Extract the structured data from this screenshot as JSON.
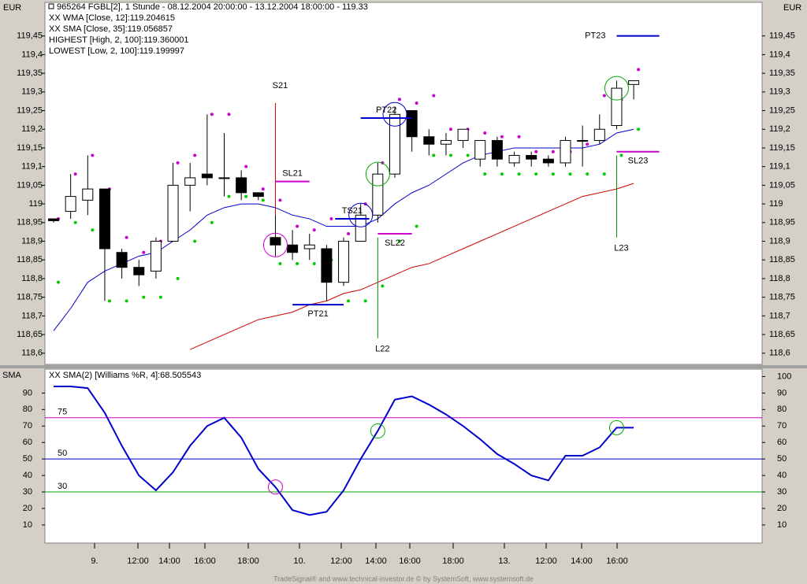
{
  "chart_data": [
    {
      "type": "candlestick",
      "title": "965264  FGBL[2], 1 Stunde - 08.12.2004 20:00:00 - 13.12.2004 18:00:00 - 119.33",
      "axis_unit": "EUR",
      "open": [
        118.96,
        118.98,
        119.01,
        119.04,
        118.87,
        118.83,
        118.82,
        118.9,
        119.05,
        119.08,
        119.07,
        119.07,
        119.03,
        118.91,
        118.89,
        118.88,
        118.88,
        118.79,
        118.9,
        118.97,
        119.08,
        119.25,
        119.18,
        119.16,
        119.17,
        119.12,
        119.17,
        119.11,
        119.13,
        119.12,
        119.11,
        119.17,
        119.17,
        119.21,
        119.32
      ],
      "high": [
        118.96,
        119.08,
        119.13,
        119.04,
        118.88,
        118.85,
        118.91,
        119.11,
        119.11,
        119.24,
        119.19,
        119.09,
        119.03,
        118.97,
        118.93,
        118.92,
        118.89,
        118.91,
        119.0,
        119.11,
        119.26,
        119.25,
        119.2,
        119.19,
        119.2,
        119.17,
        119.18,
        119.14,
        119.14,
        119.13,
        119.18,
        119.21,
        119.24,
        119.33,
        119.33
      ],
      "low": [
        118.95,
        118.96,
        118.97,
        118.74,
        118.8,
        118.78,
        118.8,
        118.9,
        118.98,
        119.05,
        119.02,
        119.01,
        119.01,
        118.86,
        118.85,
        118.85,
        118.74,
        118.78,
        118.9,
        118.95,
        119.07,
        119.14,
        119.13,
        119.13,
        119.15,
        119.1,
        119.1,
        119.1,
        119.1,
        119.1,
        119.1,
        119.1,
        119.16,
        119.2,
        119.28
      ],
      "close": [
        118.955,
        119.02,
        119.04,
        118.88,
        118.83,
        118.81,
        118.9,
        119.05,
        119.07,
        119.07,
        119.07,
        119.03,
        119.02,
        118.89,
        118.87,
        118.89,
        118.79,
        118.9,
        118.97,
        119.08,
        119.24,
        119.18,
        119.16,
        119.17,
        119.2,
        119.17,
        119.12,
        119.13,
        119.12,
        119.11,
        119.17,
        119.17,
        119.2,
        119.31,
        119.33
      ],
      "series": [
        {
          "name": "XX WMA [Close, 12]:119.204615",
          "color": "#0000cc",
          "style": "line",
          "values": [
            118.66,
            118.72,
            118.79,
            118.82,
            118.84,
            118.86,
            118.87,
            118.9,
            118.93,
            118.97,
            118.99,
            119.0,
            119.0,
            118.99,
            118.97,
            118.96,
            118.94,
            118.94,
            118.94,
            118.96,
            119.0,
            119.03,
            119.05,
            119.08,
            119.11,
            119.13,
            119.14,
            119.15,
            119.15,
            119.15,
            119.15,
            119.15,
            119.16,
            119.19,
            119.2
          ]
        },
        {
          "name": "XX SMA [Close, 35]:119.056857",
          "color": "#cc0000",
          "style": "line",
          "values": [
            null,
            null,
            null,
            null,
            null,
            null,
            null,
            null,
            118.61,
            118.63,
            118.65,
            118.67,
            118.69,
            118.7,
            118.71,
            118.73,
            118.74,
            118.76,
            118.77,
            118.79,
            118.81,
            118.83,
            118.84,
            118.86,
            118.88,
            118.9,
            118.92,
            118.94,
            118.96,
            118.98,
            119.0,
            119.02,
            119.03,
            119.04,
            119.055
          ]
        },
        {
          "name": "HIGHEST [High, 2, 100]:119.360001",
          "color": "#cc00cc",
          "style": "dots",
          "values": [
            118.96,
            119.08,
            119.13,
            119.04,
            118.91,
            118.87,
            118.9,
            119.11,
            119.13,
            119.24,
            119.24,
            119.1,
            119.04,
            119.01,
            118.94,
            118.93,
            118.96,
            118.92,
            119.0,
            119.11,
            119.28,
            119.27,
            119.29,
            119.2,
            119.2,
            119.19,
            119.18,
            119.18,
            119.14,
            119.14,
            119.14,
            119.16,
            119.29,
            119.28,
            119.36
          ]
        },
        {
          "name": "LOWEST [Low, 2, 100]:119.199997",
          "color": "#00cc00",
          "style": "dots",
          "values": [
            118.79,
            118.95,
            118.93,
            118.74,
            118.74,
            118.75,
            118.75,
            118.8,
            118.9,
            118.95,
            119.02,
            119.02,
            119.01,
            118.84,
            118.84,
            118.84,
            118.85,
            118.74,
            118.74,
            118.78,
            118.9,
            118.94,
            119.13,
            119.13,
            119.13,
            119.08,
            119.08,
            119.08,
            119.08,
            119.08,
            119.08,
            119.08,
            119.08,
            119.13,
            119.2
          ]
        }
      ],
      "annotations": [
        {
          "label": "S21",
          "color": "#cc0000",
          "values": [
            119.27,
            118.97
          ]
        },
        {
          "label": "SL21",
          "color": "#cc00cc",
          "value": 119.06
        },
        {
          "label": "TS21",
          "color": "#0000cc",
          "value": 118.96
        },
        {
          "label": "PT21",
          "color": "#0000cc",
          "value": 118.73
        },
        {
          "label": "PT22",
          "color": "#0000cc",
          "value": 119.23
        },
        {
          "label": "SL22",
          "color": "#cc00cc",
          "value": 118.92
        },
        {
          "label": "L22",
          "color": "#008800",
          "values": [
            118.91,
            118.64
          ]
        },
        {
          "label": "PT23",
          "color": "#0000cc",
          "value": 119.45
        },
        {
          "label": "SL23",
          "color": "#cc00cc",
          "value": 119.14
        },
        {
          "label": "L23",
          "color": "#008800",
          "values": [
            119.13,
            118.91
          ]
        }
      ],
      "ylim": [
        118.57,
        119.54
      ],
      "yticks": [
        {
          "value": 118.6,
          "label": "118,6"
        },
        {
          "value": 118.65,
          "label": "118,65"
        },
        {
          "value": 118.7,
          "label": "118,7"
        },
        {
          "value": 118.75,
          "label": "118,75"
        },
        {
          "value": 118.8,
          "label": "118,8"
        },
        {
          "value": 118.85,
          "label": "118,85"
        },
        {
          "value": 118.9,
          "label": "118,9"
        },
        {
          "value": 118.95,
          "label": "118,95"
        },
        {
          "value": 119,
          "label": "119"
        },
        {
          "value": 119.05,
          "label": "119,05"
        },
        {
          "value": 119.1,
          "label": "119,1"
        },
        {
          "value": 119.15,
          "label": "119,15"
        },
        {
          "value": 119.2,
          "label": "119,2"
        },
        {
          "value": 119.25,
          "label": "119,25"
        },
        {
          "value": 119.3,
          "label": "119,3"
        },
        {
          "value": 119.35,
          "label": "119,35"
        },
        {
          "value": 119.4,
          "label": "119,4"
        },
        {
          "value": 119.45,
          "label": "119,45"
        }
      ]
    },
    {
      "type": "line",
      "title": "SMA",
      "series": [
        {
          "name": "XX SMA(2) [Williams %R, 4]:68.505543",
          "color": "#0000cc",
          "values": [
            94,
            94,
            93,
            78,
            58,
            40,
            31,
            42,
            58,
            70,
            75,
            63,
            44,
            33,
            19,
            16,
            18,
            31,
            50,
            67,
            86,
            88,
            83,
            77,
            70,
            62,
            53,
            47,
            40,
            37,
            52,
            52,
            57,
            69,
            69
          ]
        }
      ],
      "levels": [
        {
          "value": 75,
          "color": "#cc00cc"
        },
        {
          "value": 50,
          "color": "#0000cc"
        },
        {
          "value": 30,
          "color": "#00aa00"
        }
      ],
      "ylim": [
        -1,
        104.5
      ],
      "yticks": [
        10,
        20,
        30,
        40,
        50,
        60,
        70,
        80,
        90
      ],
      "y2lim": [
        -1,
        104.5
      ],
      "y2ticks": [
        10,
        20,
        30,
        40,
        50,
        60,
        70,
        80,
        90,
        100
      ]
    }
  ],
  "time_axis": [
    "9.",
    "12:00",
    "14:00",
    "16:00",
    "18:00",
    "10.",
    "12:00",
    "14:00",
    "16:00",
    "18:00",
    "13.",
    "12:00",
    "14:00",
    "16:00"
  ],
  "footer": "TradeSignal® and www.technical-investor.de © by SystemSoft, www.systemsoft.de"
}
